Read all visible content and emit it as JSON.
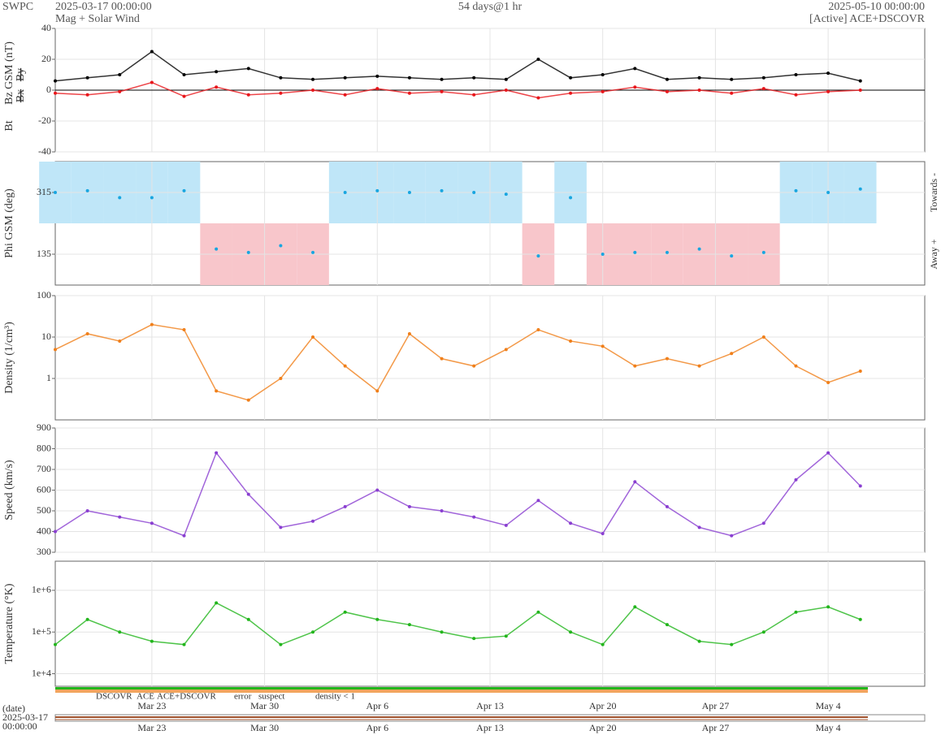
{
  "header": {
    "source": "SWPC",
    "start": "2025-03-17 00:00:00",
    "product": "Mag + Solar Wind",
    "span": "54 days@1 hr",
    "end": "2025-05-10 00:00:00",
    "status": "[Active] ACE+DSCOVR"
  },
  "chart_data": [
    {
      "type": "line",
      "xlim": [
        "2025-03-17",
        "2025-05-10"
      ],
      "x": [
        "2025-03-17",
        "2025-03-19",
        "2025-03-21",
        "2025-03-23",
        "2025-03-25",
        "2025-03-27",
        "2025-03-29",
        "2025-03-31",
        "2025-04-02",
        "2025-04-04",
        "2025-04-06",
        "2025-04-08",
        "2025-04-10",
        "2025-04-12",
        "2025-04-14",
        "2025-04-16",
        "2025-04-18",
        "2025-04-20",
        "2025-04-22",
        "2025-04-24",
        "2025-04-26",
        "2025-04-28",
        "2025-04-30",
        "2025-05-02",
        "2025-05-04",
        "2025-05-06"
      ],
      "ylim": [
        -40,
        40
      ],
      "yticks": [
        -40,
        -20,
        0,
        20,
        40
      ],
      "grid": true,
      "series": [
        {
          "name": "Bt",
          "color": "#000000",
          "values": [
            6,
            8,
            10,
            25,
            10,
            12,
            14,
            8,
            7,
            8,
            9,
            8,
            7,
            8,
            7,
            20,
            8,
            10,
            14,
            7,
            8,
            7,
            8,
            10,
            11,
            6
          ]
        },
        {
          "name": "Bz GSM (nT)",
          "color": "#e8161b",
          "values": [
            -2,
            -3,
            -1,
            5,
            -4,
            2,
            -3,
            -2,
            0,
            -3,
            1,
            -2,
            -1,
            -3,
            0,
            -5,
            -2,
            -1,
            2,
            -1,
            0,
            -2,
            1,
            -3,
            -1,
            0
          ]
        }
      ],
      "hidden_labels": [
        {
          "text": "Bx",
          "color": "#8a3fd1"
        },
        {
          "text": "By",
          "color": "#19b4e6"
        }
      ]
    },
    {
      "type": "phi",
      "xlim": [
        "2025-03-17",
        "2025-05-10"
      ],
      "x": [
        "2025-03-17",
        "2025-03-19",
        "2025-03-21",
        "2025-03-23",
        "2025-03-25",
        "2025-03-27",
        "2025-03-29",
        "2025-03-31",
        "2025-04-02",
        "2025-04-04",
        "2025-04-06",
        "2025-04-08",
        "2025-04-10",
        "2025-04-12",
        "2025-04-14",
        "2025-04-16",
        "2025-04-18",
        "2025-04-20",
        "2025-04-22",
        "2025-04-24",
        "2025-04-26",
        "2025-04-28",
        "2025-04-30",
        "2025-05-02",
        "2025-05-04",
        "2025-05-06"
      ],
      "ylim": [
        45,
        405
      ],
      "yticks": [
        135,
        315
      ],
      "grid": true,
      "sector_boundary": 225,
      "towards_color": "#bfe6f8",
      "away_color": "#f8c6cb",
      "sector_labels": [
        "Towards -",
        "Away +"
      ],
      "series": [
        {
          "name": "Phi GSM (deg)",
          "color": "#19a6e0",
          "values": [
            315,
            320,
            300,
            300,
            320,
            150,
            140,
            160,
            140,
            315,
            320,
            315,
            320,
            315,
            310,
            130,
            300,
            135,
            140,
            140,
            150,
            130,
            140,
            320,
            315,
            325
          ]
        }
      ]
    },
    {
      "type": "line",
      "log": true,
      "xlim": [
        "2025-03-17",
        "2025-05-10"
      ],
      "x": [
        "2025-03-17",
        "2025-03-19",
        "2025-03-21",
        "2025-03-23",
        "2025-03-25",
        "2025-03-27",
        "2025-03-29",
        "2025-03-31",
        "2025-04-02",
        "2025-04-04",
        "2025-04-06",
        "2025-04-08",
        "2025-04-10",
        "2025-04-12",
        "2025-04-14",
        "2025-04-16",
        "2025-04-18",
        "2025-04-20",
        "2025-04-22",
        "2025-04-24",
        "2025-04-26",
        "2025-04-28",
        "2025-04-30",
        "2025-05-02",
        "2025-05-04",
        "2025-05-06"
      ],
      "ylim": [
        0.1,
        100
      ],
      "yticks": [
        1,
        10,
        100
      ],
      "grid": true,
      "series": [
        {
          "name": "Density (1/cm³)",
          "color": "#f07f1a",
          "values": [
            5,
            12,
            8,
            20,
            15,
            0.5,
            0.3,
            1,
            10,
            2,
            0.5,
            12,
            3,
            2,
            5,
            15,
            8,
            6,
            2,
            3,
            2,
            4,
            10,
            2,
            0.8,
            1.5
          ]
        }
      ]
    },
    {
      "type": "line",
      "xlim": [
        "2025-03-17",
        "2025-05-10"
      ],
      "x": [
        "2025-03-17",
        "2025-03-19",
        "2025-03-21",
        "2025-03-23",
        "2025-03-25",
        "2025-03-27",
        "2025-03-29",
        "2025-03-31",
        "2025-04-02",
        "2025-04-04",
        "2025-04-06",
        "2025-04-08",
        "2025-04-10",
        "2025-04-12",
        "2025-04-14",
        "2025-04-16",
        "2025-04-18",
        "2025-04-20",
        "2025-04-22",
        "2025-04-24",
        "2025-04-26",
        "2025-04-28",
        "2025-04-30",
        "2025-05-02",
        "2025-05-04",
        "2025-05-06"
      ],
      "ylim": [
        300,
        900
      ],
      "yticks": [
        300,
        400,
        500,
        600,
        700,
        800,
        900
      ],
      "grid": true,
      "series": [
        {
          "name": "Speed (km/s)",
          "color": "#8a3fd1",
          "values": [
            400,
            500,
            470,
            440,
            380,
            780,
            580,
            420,
            450,
            520,
            600,
            520,
            500,
            470,
            430,
            550,
            440,
            390,
            640,
            520,
            420,
            380,
            440,
            650,
            780,
            620
          ]
        }
      ]
    },
    {
      "type": "line",
      "log": true,
      "xlim": [
        "2025-03-17",
        "2025-05-10"
      ],
      "x": [
        "2025-03-17",
        "2025-03-19",
        "2025-03-21",
        "2025-03-23",
        "2025-03-25",
        "2025-03-27",
        "2025-03-29",
        "2025-03-31",
        "2025-04-02",
        "2025-04-04",
        "2025-04-06",
        "2025-04-08",
        "2025-04-10",
        "2025-04-12",
        "2025-04-14",
        "2025-04-16",
        "2025-04-18",
        "2025-04-20",
        "2025-04-22",
        "2025-04-24",
        "2025-04-26",
        "2025-04-28",
        "2025-04-30",
        "2025-05-02",
        "2025-05-04",
        "2025-05-06"
      ],
      "ylim": [
        5000,
        5000000
      ],
      "yticks": [
        {
          "value": 10000,
          "label": "1e+4"
        },
        {
          "value": 100000,
          "label": "1e+5"
        },
        {
          "value": 1000000,
          "label": "1e+6"
        }
      ],
      "grid": true,
      "series": [
        {
          "name": "Temperature (°K)",
          "color": "#22b51c",
          "values": [
            50000,
            200000,
            100000,
            60000,
            50000,
            500000,
            200000,
            50000,
            100000,
            300000,
            200000,
            150000,
            100000,
            70000,
            80000,
            300000,
            100000,
            50000,
            400000,
            150000,
            60000,
            50000,
            100000,
            300000,
            400000,
            200000
          ]
        }
      ]
    }
  ],
  "source_legend": [
    {
      "name": "DSCOVR",
      "color": "#1a1adb"
    },
    {
      "name": "ACE",
      "color": "#22b51c"
    },
    {
      "name": "ACE+DSCOVR",
      "color": "#e020d0"
    },
    {
      "name": "error",
      "color": "#e8161b"
    },
    {
      "name": "suspect",
      "color": "#f2c018"
    },
    {
      "name": "density < 1",
      "color": "#f07f1a"
    }
  ],
  "date_axis": {
    "label": "(date)",
    "start_date": "2025-03-17",
    "start_time": "00:00:00",
    "xticks": [
      {
        "value": "2025-03-23",
        "label": "Mar 23"
      },
      {
        "value": "2025-03-30",
        "label": "Mar 30"
      },
      {
        "value": "2025-04-06",
        "label": "Apr 6"
      },
      {
        "value": "2025-04-13",
        "label": "Apr 13"
      },
      {
        "value": "2025-04-20",
        "label": "Apr 20"
      },
      {
        "value": "2025-04-27",
        "label": "Apr 27"
      },
      {
        "value": "2025-05-04",
        "label": "May 4"
      }
    ]
  }
}
